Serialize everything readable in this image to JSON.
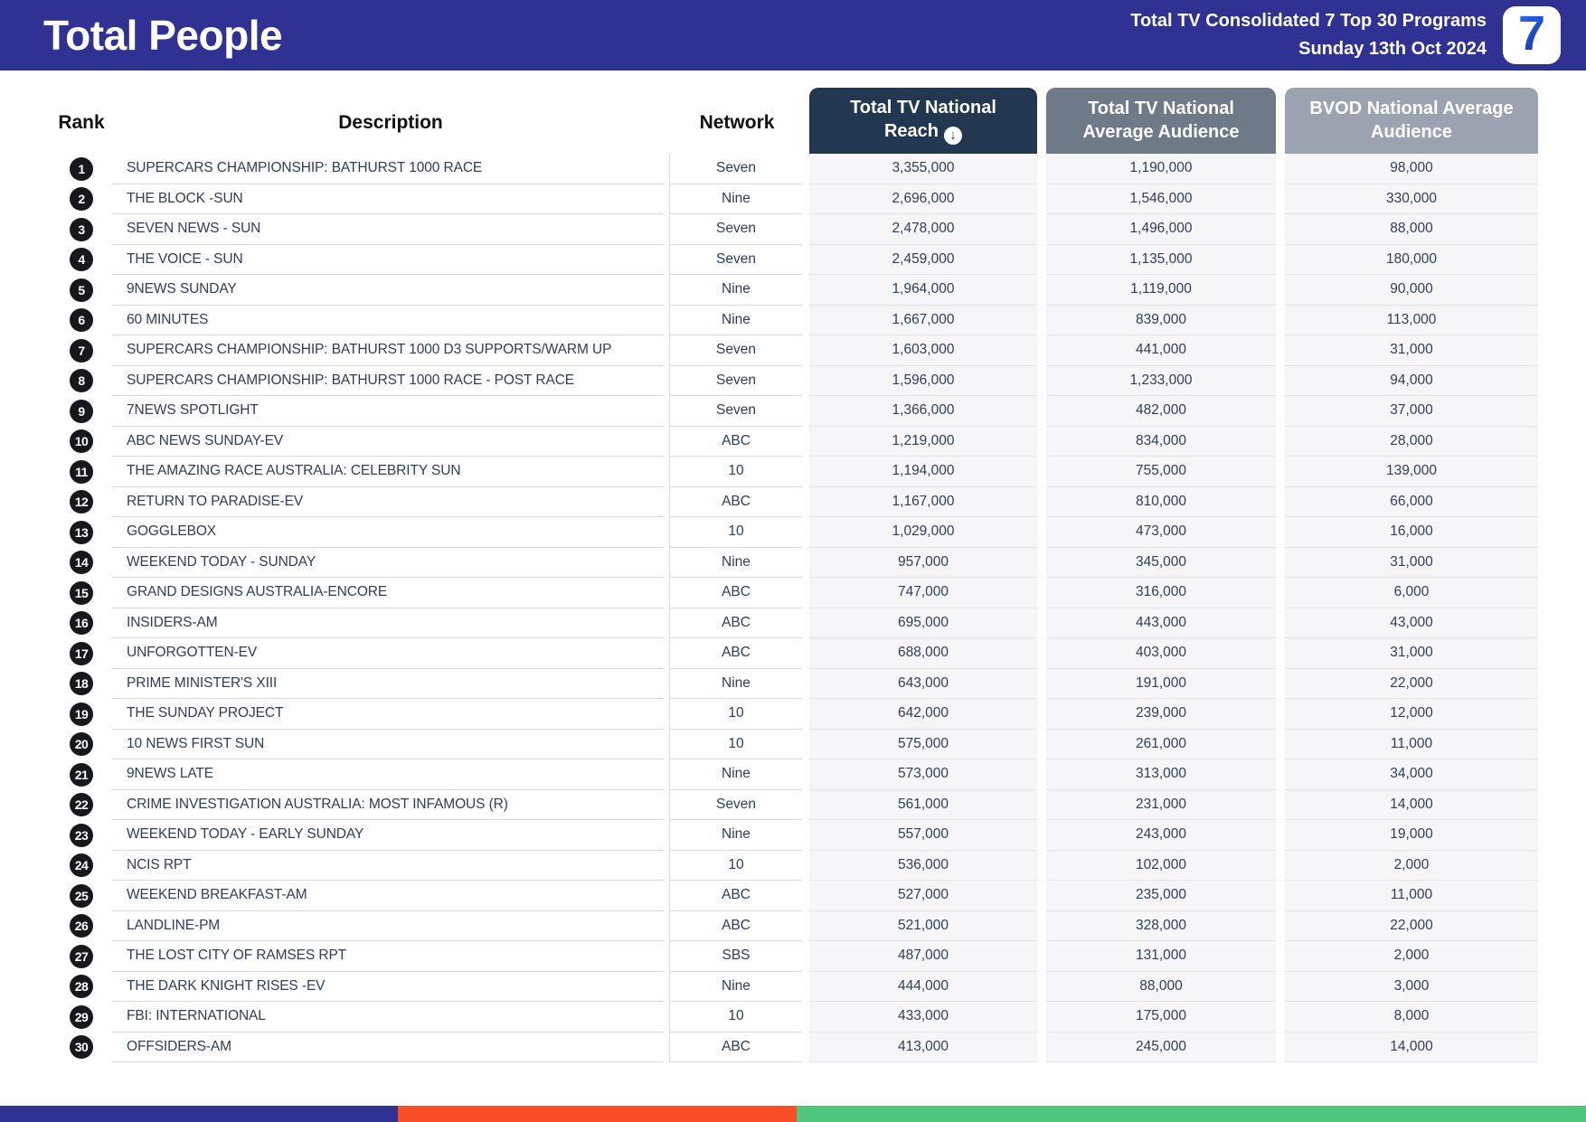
{
  "header": {
    "title": "Total People",
    "report_title": "Total TV Consolidated 7 Top 30 Programs",
    "report_date": "Sunday 13th Oct 2024",
    "logo_text": "7"
  },
  "table": {
    "headers": {
      "rank": "Rank",
      "description": "Description",
      "network": "Network",
      "reach": "Total TV National Reach",
      "avg_audience": "Total TV National Average Audience",
      "bvod": "BVOD National Average Audience"
    },
    "sort_icon_glyph": "↓",
    "rows": [
      {
        "rank": "1",
        "description": "SUPERCARS CHAMPIONSHIP: BATHURST 1000 RACE",
        "network": "Seven",
        "reach": "3,355,000",
        "avg": "1,190,000",
        "bvod": "98,000"
      },
      {
        "rank": "2",
        "description": "THE BLOCK -SUN",
        "network": "Nine",
        "reach": "2,696,000",
        "avg": "1,546,000",
        "bvod": "330,000"
      },
      {
        "rank": "3",
        "description": "SEVEN NEWS - SUN",
        "network": "Seven",
        "reach": "2,478,000",
        "avg": "1,496,000",
        "bvod": "88,000"
      },
      {
        "rank": "4",
        "description": "THE VOICE - SUN",
        "network": "Seven",
        "reach": "2,459,000",
        "avg": "1,135,000",
        "bvod": "180,000"
      },
      {
        "rank": "5",
        "description": "9NEWS SUNDAY",
        "network": "Nine",
        "reach": "1,964,000",
        "avg": "1,119,000",
        "bvod": "90,000"
      },
      {
        "rank": "6",
        "description": "60 MINUTES",
        "network": "Nine",
        "reach": "1,667,000",
        "avg": "839,000",
        "bvod": "113,000"
      },
      {
        "rank": "7",
        "description": "SUPERCARS CHAMPIONSHIP: BATHURST 1000 D3 SUPPORTS/WARM UP",
        "network": "Seven",
        "reach": "1,603,000",
        "avg": "441,000",
        "bvod": "31,000"
      },
      {
        "rank": "8",
        "description": "SUPERCARS CHAMPIONSHIP: BATHURST 1000 RACE - POST RACE",
        "network": "Seven",
        "reach": "1,596,000",
        "avg": "1,233,000",
        "bvod": "94,000"
      },
      {
        "rank": "9",
        "description": "7NEWS SPOTLIGHT",
        "network": "Seven",
        "reach": "1,366,000",
        "avg": "482,000",
        "bvod": "37,000"
      },
      {
        "rank": "10",
        "description": "ABC NEWS SUNDAY-EV",
        "network": "ABC",
        "reach": "1,219,000",
        "avg": "834,000",
        "bvod": "28,000"
      },
      {
        "rank": "11",
        "description": "THE AMAZING RACE AUSTRALIA: CELEBRITY SUN",
        "network": "10",
        "reach": "1,194,000",
        "avg": "755,000",
        "bvod": "139,000"
      },
      {
        "rank": "12",
        "description": "RETURN TO PARADISE-EV",
        "network": "ABC",
        "reach": "1,167,000",
        "avg": "810,000",
        "bvod": "66,000"
      },
      {
        "rank": "13",
        "description": "GOGGLEBOX",
        "network": "10",
        "reach": "1,029,000",
        "avg": "473,000",
        "bvod": "16,000"
      },
      {
        "rank": "14",
        "description": "WEEKEND TODAY - SUNDAY",
        "network": "Nine",
        "reach": "957,000",
        "avg": "345,000",
        "bvod": "31,000"
      },
      {
        "rank": "15",
        "description": "GRAND DESIGNS AUSTRALIA-ENCORE",
        "network": "ABC",
        "reach": "747,000",
        "avg": "316,000",
        "bvod": "6,000"
      },
      {
        "rank": "16",
        "description": "INSIDERS-AM",
        "network": "ABC",
        "reach": "695,000",
        "avg": "443,000",
        "bvod": "43,000"
      },
      {
        "rank": "17",
        "description": "UNFORGOTTEN-EV",
        "network": "ABC",
        "reach": "688,000",
        "avg": "403,000",
        "bvod": "31,000"
      },
      {
        "rank": "18",
        "description": "PRIME MINISTER'S XIII",
        "network": "Nine",
        "reach": "643,000",
        "avg": "191,000",
        "bvod": "22,000"
      },
      {
        "rank": "19",
        "description": "THE SUNDAY PROJECT",
        "network": "10",
        "reach": "642,000",
        "avg": "239,000",
        "bvod": "12,000"
      },
      {
        "rank": "20",
        "description": "10 NEWS FIRST SUN",
        "network": "10",
        "reach": "575,000",
        "avg": "261,000",
        "bvod": "11,000"
      },
      {
        "rank": "21",
        "description": "9NEWS LATE",
        "network": "Nine",
        "reach": "573,000",
        "avg": "313,000",
        "bvod": "34,000"
      },
      {
        "rank": "22",
        "description": "CRIME INVESTIGATION AUSTRALIA: MOST INFAMOUS (R)",
        "network": "Seven",
        "reach": "561,000",
        "avg": "231,000",
        "bvod": "14,000"
      },
      {
        "rank": "23",
        "description": "WEEKEND TODAY - EARLY SUNDAY",
        "network": "Nine",
        "reach": "557,000",
        "avg": "243,000",
        "bvod": "19,000"
      },
      {
        "rank": "24",
        "description": "NCIS RPT",
        "network": "10",
        "reach": "536,000",
        "avg": "102,000",
        "bvod": "2,000"
      },
      {
        "rank": "25",
        "description": "WEEKEND BREAKFAST-AM",
        "network": "ABC",
        "reach": "527,000",
        "avg": "235,000",
        "bvod": "11,000"
      },
      {
        "rank": "26",
        "description": "LANDLINE-PM",
        "network": "ABC",
        "reach": "521,000",
        "avg": "328,000",
        "bvod": "22,000"
      },
      {
        "rank": "27",
        "description": "THE LOST CITY OF RAMSES RPT",
        "network": "SBS",
        "reach": "487,000",
        "avg": "131,000",
        "bvod": "2,000"
      },
      {
        "rank": "28",
        "description": "THE DARK KNIGHT RISES -EV",
        "network": "Nine",
        "reach": "444,000",
        "avg": "88,000",
        "bvod": "3,000"
      },
      {
        "rank": "29",
        "description": "FBI: INTERNATIONAL",
        "network": "10",
        "reach": "433,000",
        "avg": "175,000",
        "bvod": "8,000"
      },
      {
        "rank": "30",
        "description": "OFFSIDERS-AM",
        "network": "ABC",
        "reach": "413,000",
        "avg": "245,000",
        "bvod": "14,000"
      }
    ]
  },
  "colors": {
    "banner_blue": "#2F3193",
    "reach_header": "#223750",
    "avg_header": "#6F7A89",
    "bvod_header": "#9BA3B1",
    "logo_seven_blue": "#1D46C8",
    "rank_badge": "#17181C"
  },
  "footer": {
    "segments": [
      {
        "name": "blue",
        "color": "#2F3193",
        "width_pct": 25.1
      },
      {
        "name": "orange",
        "color": "#FA4F26",
        "width_pct": 25.1
      },
      {
        "name": "green",
        "color": "#4FC67C",
        "width_pct": 49.8
      }
    ]
  }
}
